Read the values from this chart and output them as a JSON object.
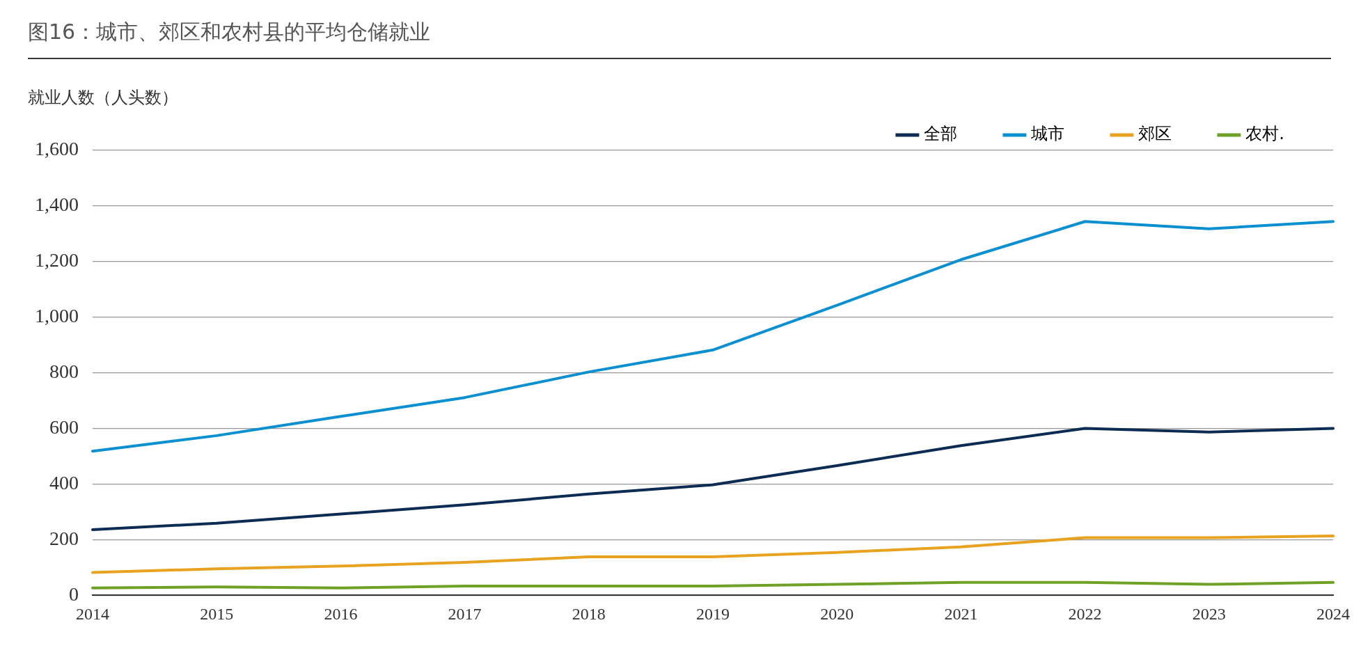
{
  "chart_data": {
    "type": "line",
    "title": "图16：城市、郊区和农村县的平均仓储就业",
    "ylabel": "就业人数（人头数）",
    "categories": [
      "2014",
      "2015",
      "2016",
      "2017",
      "2018",
      "2019",
      "2020",
      "2021",
      "2022",
      "2023",
      "2024"
    ],
    "series": [
      {
        "name": "全部",
        "color": "#0d2c54",
        "values": [
          236,
          259,
          292,
          325,
          364,
          397,
          466,
          538,
          600,
          587,
          600
        ]
      },
      {
        "name": "城市",
        "color": "#0a8fd0",
        "values": [
          518,
          574,
          643,
          711,
          803,
          882,
          1043,
          1207,
          1344,
          1318,
          1344
        ]
      },
      {
        "name": "郊区",
        "color": "#e8a21f",
        "values": [
          82,
          95,
          105,
          118,
          138,
          138,
          154,
          174,
          207,
          207,
          213
        ]
      },
      {
        "name": "农村.",
        "color": "#6ea125",
        "values": [
          26,
          30,
          26,
          33,
          33,
          33,
          39,
          46,
          46,
          39,
          46
        ]
      }
    ],
    "ylim": [
      0,
      1600
    ],
    "yticks": [
      0,
      200,
      400,
      600,
      800,
      {
        "value": 1000,
        "label": "1,000"
      },
      {
        "value": 1200,
        "label": "1,200"
      },
      {
        "value": 1400,
        "label": "1,400"
      },
      {
        "value": 1600,
        "label": "1,600"
      }
    ],
    "grid": "y",
    "legend": "top right",
    "marker": "none",
    "line_style": "solid"
  }
}
